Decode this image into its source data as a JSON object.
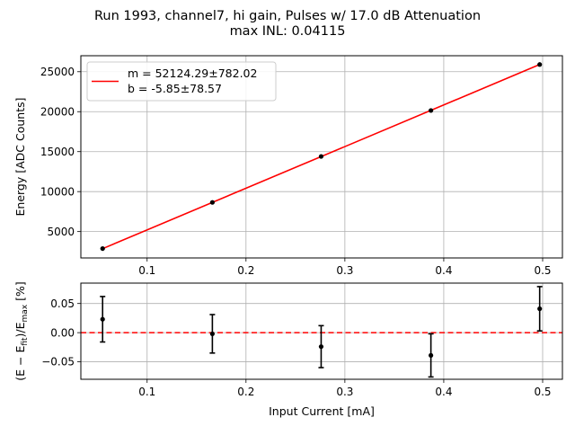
{
  "title_line1": "Run 1993, channel7, hi gain, Pulses w/ 17.0 dB Attenuation",
  "title_line2": "max INL: 0.04115",
  "chart_data": [
    {
      "type": "scatter",
      "role": "fit",
      "x": [
        0.055,
        0.166,
        0.276,
        0.387,
        0.497
      ],
      "y": [
        2870,
        8650,
        14400,
        20150,
        25900
      ],
      "fit_line": {
        "m": 52124.29,
        "b": -5.85,
        "color": "#ff0000"
      },
      "point_color": "#000000",
      "legend": {
        "location": "upper-left",
        "entries": [
          "m = 52124.29±782.02",
          "b = -5.85±78.57"
        ]
      },
      "xlim": [
        0.033,
        0.52
      ],
      "ylim": [
        1700,
        27000
      ],
      "xticks": [
        0.1,
        0.2,
        0.3,
        0.4,
        0.5
      ],
      "xtick_labels": [
        "0.1",
        "0.2",
        "0.3",
        "0.4",
        "0.5"
      ],
      "yticks": [
        5000,
        10000,
        15000,
        20000,
        25000
      ],
      "ytick_labels": [
        "5000",
        "10000",
        "15000",
        "20000",
        "25000"
      ],
      "ylabel": "Energy [ADC Counts]",
      "grid": true
    },
    {
      "type": "scatter",
      "role": "residuals",
      "x": [
        0.055,
        0.166,
        0.276,
        0.387,
        0.497
      ],
      "y": [
        0.023,
        -0.002,
        -0.024,
        -0.039,
        0.041
      ],
      "yerr": [
        0.039,
        0.033,
        0.036,
        0.037,
        0.038
      ],
      "reference_line": {
        "y": 0,
        "style": "dashed",
        "color": "#ff0000"
      },
      "xlim": [
        0.033,
        0.52
      ],
      "ylim": [
        -0.08,
        0.085
      ],
      "xticks": [
        0.1,
        0.2,
        0.3,
        0.4,
        0.5
      ],
      "xtick_labels": [
        "0.1",
        "0.2",
        "0.3",
        "0.4",
        "0.5"
      ],
      "yticks": [
        -0.05,
        0.0,
        0.05
      ],
      "ytick_labels": [
        "−0.05",
        "0.00",
        "0.05"
      ],
      "xlabel": "Input Current [mA]",
      "ylabel_parts": {
        "prefix": "(E − E",
        "sub1": "fit",
        "mid": ")/E",
        "sub2": "max",
        "suffix": " [%]"
      },
      "grid": true
    }
  ]
}
